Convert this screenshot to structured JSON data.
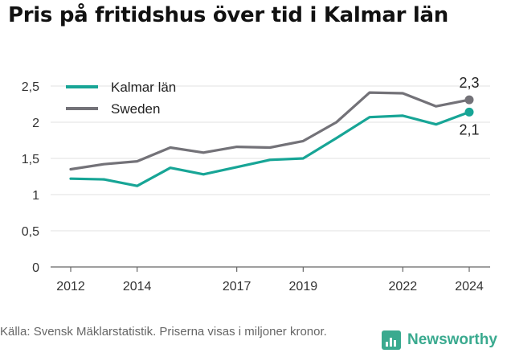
{
  "title": "Pris på fritidshus över tid i Kalmar län",
  "source": "Källa: Svensk Mäklarstatistik. Priserna visas i miljoner kronor.",
  "brand": "Newsworthy",
  "colors": {
    "kalmar": "#17a596",
    "sweden": "#737278",
    "brand": "#3aaa8f"
  },
  "chart_data": {
    "type": "line",
    "x": [
      2012,
      2013,
      2014,
      2015,
      2016,
      2017,
      2018,
      2019,
      2020,
      2021,
      2022,
      2023,
      2024
    ],
    "x_ticks": [
      "2012",
      "2014",
      "2017",
      "2019",
      "2022",
      "2024"
    ],
    "y_ticks": [
      "0",
      "0,5",
      "1",
      "1,5",
      "2",
      "2,5"
    ],
    "ylim": [
      0,
      2.6
    ],
    "grid": true,
    "legend_position": "top-left",
    "series": [
      {
        "name": "Kalmar län",
        "color": "#17a596",
        "values": [
          1.22,
          1.21,
          1.12,
          1.37,
          1.28,
          1.38,
          1.48,
          1.5,
          1.78,
          2.07,
          2.09,
          1.97,
          2.14
        ],
        "end_label": "2,1"
      },
      {
        "name": "Sweden",
        "color": "#737278",
        "values": [
          1.35,
          1.42,
          1.46,
          1.65,
          1.58,
          1.66,
          1.65,
          1.74,
          2.0,
          2.41,
          2.4,
          2.22,
          2.31
        ],
        "end_label": "2,3"
      }
    ]
  }
}
